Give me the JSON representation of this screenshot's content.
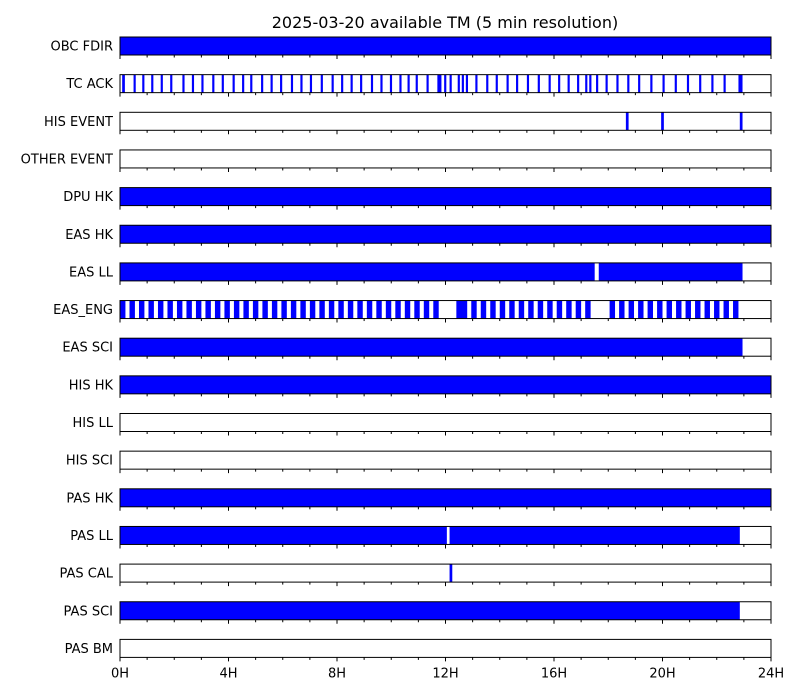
{
  "chart_data": {
    "type": "timeline",
    "title": "2025-03-20 available TM (5 min resolution)",
    "x_unit": "hours",
    "xlim": [
      0,
      24
    ],
    "x_ticks": [
      {
        "value": 0,
        "label": "0H"
      },
      {
        "value": 4,
        "label": "4H"
      },
      {
        "value": 8,
        "label": "8H"
      },
      {
        "value": 12,
        "label": "12H"
      },
      {
        "value": 16,
        "label": "16H"
      },
      {
        "value": 20,
        "label": "20H"
      },
      {
        "value": 24,
        "label": "24H"
      }
    ],
    "minor_tick_step": 1,
    "bar_color": "#0000ff",
    "edge_color": "#000000",
    "rows": [
      {
        "label": "OBC FDIR",
        "intervals": [
          [
            0,
            24
          ]
        ]
      },
      {
        "label": "TC ACK",
        "intervals": [
          [
            0.08,
            0.18
          ],
          [
            0.5,
            0.58
          ],
          [
            0.82,
            0.9
          ],
          [
            1.15,
            1.23
          ],
          [
            1.5,
            1.58
          ],
          [
            1.85,
            1.93
          ],
          [
            2.3,
            2.38
          ],
          [
            2.65,
            2.73
          ],
          [
            3.0,
            3.08
          ],
          [
            3.4,
            3.48
          ],
          [
            3.75,
            3.83
          ],
          [
            4.15,
            4.23
          ],
          [
            4.5,
            4.58
          ],
          [
            4.8,
            4.88
          ],
          [
            5.2,
            5.28
          ],
          [
            5.55,
            5.63
          ],
          [
            5.9,
            5.98
          ],
          [
            6.3,
            6.38
          ],
          [
            6.65,
            6.73
          ],
          [
            7.0,
            7.08
          ],
          [
            7.4,
            7.48
          ],
          [
            7.8,
            7.88
          ],
          [
            8.15,
            8.23
          ],
          [
            8.5,
            8.58
          ],
          [
            8.85,
            8.93
          ],
          [
            9.25,
            9.33
          ],
          [
            9.6,
            9.68
          ],
          [
            9.95,
            10.03
          ],
          [
            10.3,
            10.38
          ],
          [
            10.6,
            10.68
          ],
          [
            10.9,
            10.98
          ],
          [
            11.3,
            11.38
          ],
          [
            11.7,
            11.85
          ],
          [
            11.95,
            12.03
          ],
          [
            12.15,
            12.23
          ],
          [
            12.45,
            12.53
          ],
          [
            12.6,
            12.68
          ],
          [
            12.75,
            12.83
          ],
          [
            13.1,
            13.18
          ],
          [
            13.5,
            13.58
          ],
          [
            13.85,
            13.93
          ],
          [
            14.25,
            14.33
          ],
          [
            14.6,
            14.68
          ],
          [
            15.0,
            15.08
          ],
          [
            15.4,
            15.48
          ],
          [
            15.8,
            15.88
          ],
          [
            16.15,
            16.23
          ],
          [
            16.5,
            16.58
          ],
          [
            16.85,
            16.93
          ],
          [
            17.15,
            17.23
          ],
          [
            17.3,
            17.38
          ],
          [
            17.55,
            17.63
          ],
          [
            17.9,
            17.98
          ],
          [
            18.3,
            18.38
          ],
          [
            18.7,
            18.78
          ],
          [
            19.1,
            19.18
          ],
          [
            19.55,
            19.63
          ],
          [
            20.0,
            20.08
          ],
          [
            20.45,
            20.53
          ],
          [
            20.9,
            20.98
          ],
          [
            21.35,
            21.43
          ],
          [
            21.8,
            21.88
          ],
          [
            22.25,
            22.33
          ],
          [
            22.8,
            22.95
          ]
        ]
      },
      {
        "label": "HIS EVENT",
        "intervals": [
          [
            18.65,
            18.75
          ],
          [
            19.95,
            20.05
          ],
          [
            22.85,
            22.95
          ]
        ]
      },
      {
        "label": "OTHER EVENT",
        "intervals": []
      },
      {
        "label": "DPU HK",
        "intervals": [
          [
            0,
            24
          ]
        ]
      },
      {
        "label": "EAS HK",
        "intervals": [
          [
            0,
            24
          ]
        ]
      },
      {
        "label": "EAS LL",
        "intervals": [
          [
            0,
            17.5
          ],
          [
            17.65,
            22.95
          ]
        ]
      },
      {
        "label": "EAS_ENG",
        "intervals": [
          [
            0.0,
            0.2
          ],
          [
            0.35,
            0.55
          ],
          [
            0.7,
            0.9
          ],
          [
            1.05,
            1.25
          ],
          [
            1.4,
            1.6
          ],
          [
            1.75,
            1.95
          ],
          [
            2.1,
            2.3
          ],
          [
            2.45,
            2.65
          ],
          [
            2.8,
            3.0
          ],
          [
            3.15,
            3.35
          ],
          [
            3.5,
            3.7
          ],
          [
            3.85,
            4.05
          ],
          [
            4.2,
            4.4
          ],
          [
            4.55,
            4.75
          ],
          [
            4.9,
            5.1
          ],
          [
            5.25,
            5.45
          ],
          [
            5.6,
            5.8
          ],
          [
            5.95,
            6.15
          ],
          [
            6.3,
            6.5
          ],
          [
            6.65,
            6.85
          ],
          [
            7.0,
            7.2
          ],
          [
            7.35,
            7.55
          ],
          [
            7.7,
            7.9
          ],
          [
            8.05,
            8.25
          ],
          [
            8.4,
            8.6
          ],
          [
            8.75,
            8.95
          ],
          [
            9.1,
            9.3
          ],
          [
            9.45,
            9.65
          ],
          [
            9.8,
            10.0
          ],
          [
            10.15,
            10.35
          ],
          [
            10.5,
            10.7
          ],
          [
            10.85,
            11.05
          ],
          [
            11.2,
            11.4
          ],
          [
            11.55,
            11.75
          ],
          [
            12.4,
            12.8
          ],
          [
            12.95,
            13.15
          ],
          [
            13.3,
            13.5
          ],
          [
            13.65,
            13.85
          ],
          [
            14.0,
            14.2
          ],
          [
            14.35,
            14.55
          ],
          [
            14.7,
            14.9
          ],
          [
            15.05,
            15.25
          ],
          [
            15.4,
            15.6
          ],
          [
            15.75,
            15.95
          ],
          [
            16.1,
            16.3
          ],
          [
            16.45,
            16.65
          ],
          [
            16.8,
            17.0
          ],
          [
            17.15,
            17.35
          ],
          [
            18.05,
            18.25
          ],
          [
            18.4,
            18.6
          ],
          [
            18.75,
            18.95
          ],
          [
            19.1,
            19.3
          ],
          [
            19.45,
            19.65
          ],
          [
            19.8,
            20.0
          ],
          [
            20.15,
            20.35
          ],
          [
            20.5,
            20.7
          ],
          [
            20.85,
            21.05
          ],
          [
            21.2,
            21.4
          ],
          [
            21.55,
            21.75
          ],
          [
            21.9,
            22.1
          ],
          [
            22.25,
            22.45
          ],
          [
            22.6,
            22.8
          ]
        ]
      },
      {
        "label": "EAS SCI",
        "intervals": [
          [
            0,
            22.95
          ]
        ]
      },
      {
        "label": "HIS HK",
        "intervals": [
          [
            0,
            24
          ]
        ]
      },
      {
        "label": "HIS LL",
        "intervals": []
      },
      {
        "label": "HIS SCI",
        "intervals": []
      },
      {
        "label": "PAS HK",
        "intervals": [
          [
            0,
            24
          ]
        ]
      },
      {
        "label": "PAS LL",
        "intervals": [
          [
            0,
            12.05
          ],
          [
            12.15,
            22.85
          ]
        ]
      },
      {
        "label": "PAS CAL",
        "intervals": [
          [
            12.15,
            12.25
          ]
        ]
      },
      {
        "label": "PAS SCI",
        "intervals": [
          [
            0,
            22.85
          ]
        ]
      },
      {
        "label": "PAS BM",
        "intervals": []
      }
    ]
  }
}
